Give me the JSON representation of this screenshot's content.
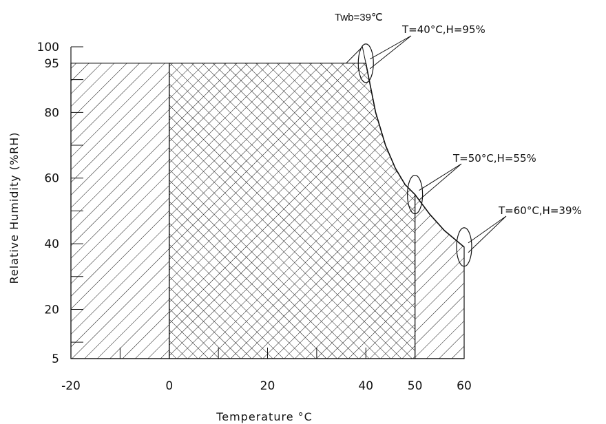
{
  "chart_data": {
    "type": "area",
    "title": "",
    "xlabel": "Temperature °C",
    "ylabel": "Relative Humidity (%RH)",
    "xlim": [
      -20,
      60
    ],
    "ylim": [
      5,
      100
    ],
    "x_ticks": [
      {
        "value": -20,
        "label": "-20"
      },
      {
        "value": 0,
        "label": "0"
      },
      {
        "value": 20,
        "label": "20"
      },
      {
        "value": 40,
        "label": "40"
      },
      {
        "value": 50,
        "label": "50"
      },
      {
        "value": 60,
        "label": "60"
      }
    ],
    "y_ticks": [
      {
        "value": 5,
        "label": "5"
      },
      {
        "value": 20,
        "label": "20"
      },
      {
        "value": 40,
        "label": "40"
      },
      {
        "value": 60,
        "label": "60"
      },
      {
        "value": 80,
        "label": "80"
      },
      {
        "value": 95,
        "label": "95"
      },
      {
        "value": 100,
        "label": "100"
      }
    ],
    "regions": [
      {
        "name": "single-hatch-left",
        "hatch": "single",
        "boundary": [
          [
            -20,
            5
          ],
          [
            -20,
            95
          ],
          [
            0,
            95
          ],
          [
            0,
            5
          ]
        ]
      },
      {
        "name": "cross-hatch-center",
        "hatch": "cross",
        "boundary": [
          [
            0,
            5
          ],
          [
            0,
            95
          ],
          [
            40,
            95
          ],
          [
            42,
            80
          ],
          [
            44,
            70
          ],
          [
            46,
            63
          ],
          [
            48,
            58
          ],
          [
            50,
            55
          ],
          [
            50,
            5
          ]
        ]
      },
      {
        "name": "single-hatch-right",
        "hatch": "single",
        "boundary": [
          [
            50,
            5
          ],
          [
            50,
            55
          ],
          [
            53,
            49
          ],
          [
            56,
            44
          ],
          [
            60,
            39
          ],
          [
            60,
            5
          ]
        ]
      }
    ],
    "wet_bulb_curve": {
      "label": "Twb=39℃",
      "points": [
        [
          40,
          95
        ],
        [
          42,
          80
        ],
        [
          44,
          70
        ],
        [
          46,
          63
        ],
        [
          48,
          58
        ],
        [
          50,
          55
        ],
        [
          53,
          49
        ],
        [
          56,
          44
        ],
        [
          60,
          39
        ]
      ]
    },
    "annotations": [
      {
        "text": "T=40°C,H=95%",
        "x": 40,
        "y": 95
      },
      {
        "text": "T=50°C,H=55%",
        "x": 50,
        "y": 55
      },
      {
        "text": "T=60°C,H=39%",
        "x": 60,
        "y": 39
      }
    ]
  }
}
